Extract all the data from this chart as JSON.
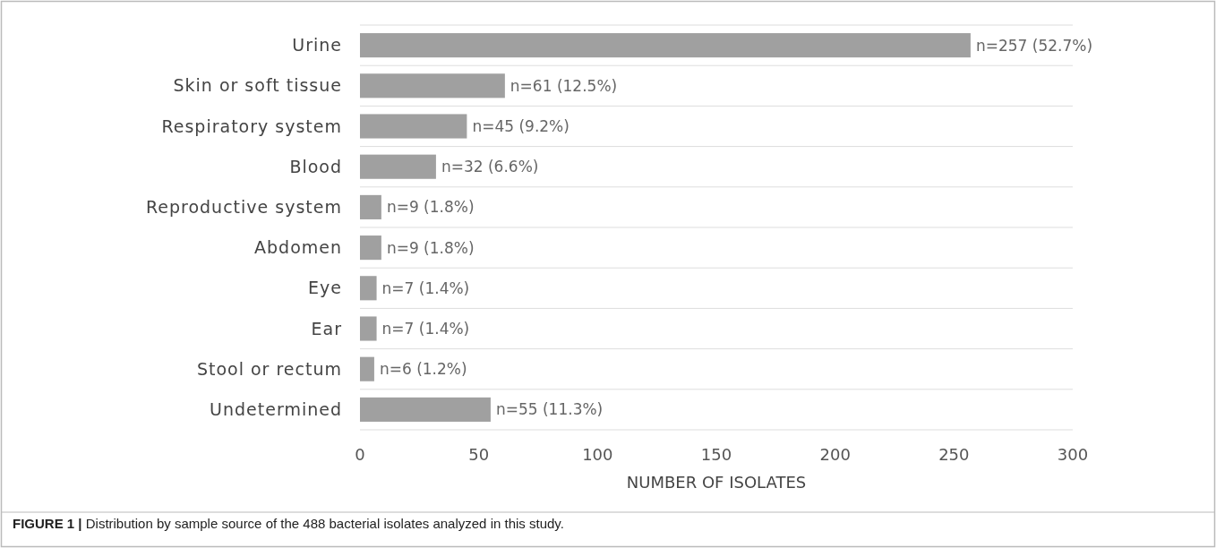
{
  "chart_data": {
    "type": "bar",
    "orientation": "horizontal",
    "categories": [
      "Urine",
      "Skin or soft tissue",
      "Respiratory system",
      "Blood",
      "Reproductive system",
      "Abdomen",
      "Eye",
      "Ear",
      "Stool or rectum",
      "Undetermined"
    ],
    "values": [
      257,
      61,
      45,
      32,
      9,
      9,
      7,
      7,
      6,
      55
    ],
    "value_labels": [
      "n=257 (52.7%)",
      "n=61 (12.5%)",
      "n=45 (9.2%)",
      "n=32 (6.6%)",
      "n=9 (1.8%)",
      "n=9 (1.8%)",
      "n=7 (1.4%)",
      "n=7 (1.4%)",
      "n=6 (1.2%)",
      "n=55 (11.3%)"
    ],
    "color": "#a0a0a0",
    "xlim": [
      0,
      300
    ],
    "xticks": [
      0,
      50,
      100,
      150,
      200,
      250,
      300
    ],
    "xlabel": "NUMBER OF ISOLATES",
    "grid": "y",
    "annotations": [
      "FIGURE 1 | Distribution by sample source of the 488 bacterial isolates analyzed in this study."
    ]
  }
}
